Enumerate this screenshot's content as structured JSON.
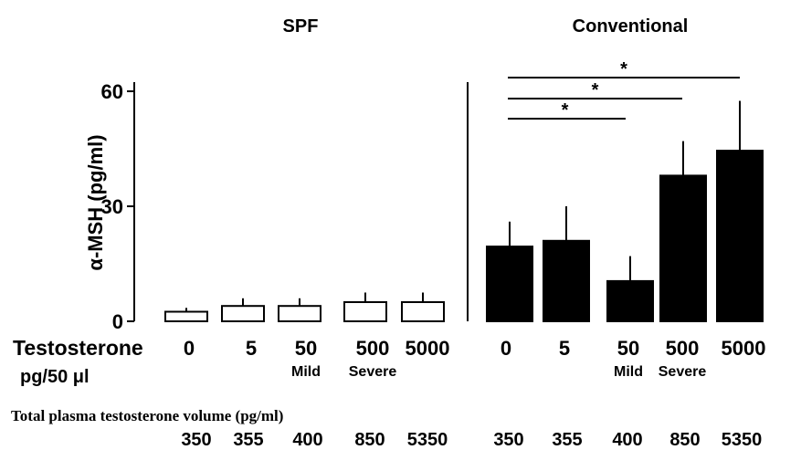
{
  "chart_data": {
    "type": "bar",
    "ylabel": "α-MSH (pg/ml)",
    "ylim": [
      0,
      60
    ],
    "yticks": [
      0,
      30,
      60
    ],
    "grid": false,
    "row_label_line1": "Testosterone",
    "row_label_line2": "pg/50 μl",
    "plasma_label": "Total plasma testosterone volume (pg/ml)",
    "panels": [
      {
        "title": "SPF",
        "bar_fill": "#ffffff",
        "categories": [
          "0",
          "5",
          "50",
          "500",
          "5000"
        ],
        "sublabels": [
          "",
          "",
          "Mild",
          "Severe",
          ""
        ],
        "values": [
          2.5,
          4,
          4,
          5,
          5
        ],
        "errors": [
          1,
          2,
          2,
          2.5,
          2.5
        ],
        "plasma": [
          "350",
          "355",
          "400",
          "850",
          "5350"
        ]
      },
      {
        "title": "Conventional",
        "bar_fill": "#000000",
        "categories": [
          "0",
          "5",
          "50",
          "500",
          "5000"
        ],
        "sublabels": [
          "",
          "",
          "Mild",
          "Severe",
          ""
        ],
        "values": [
          19.5,
          21,
          10.5,
          38,
          44.5
        ],
        "errors": [
          6.5,
          9,
          6.5,
          9,
          13
        ],
        "plasma": [
          "350",
          "355",
          "400",
          "850",
          "5350"
        ],
        "significance": [
          {
            "from": 0,
            "to": 2,
            "label": "*"
          },
          {
            "from": 0,
            "to": 3,
            "label": "*"
          },
          {
            "from": 0,
            "to": 4,
            "label": "*"
          }
        ]
      }
    ]
  }
}
